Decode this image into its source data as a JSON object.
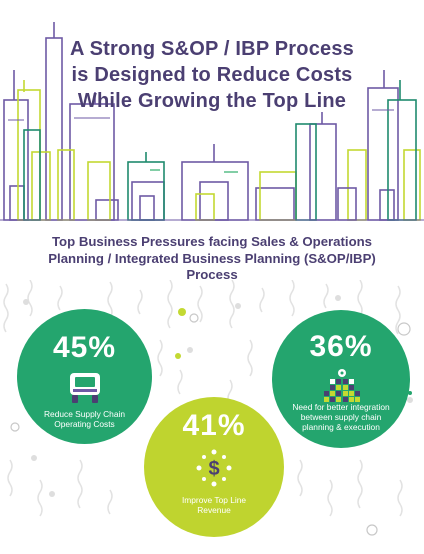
{
  "title": {
    "line1": "A Strong S&OP / IBP Process",
    "line2": "is Designed to Reduce Costs",
    "line3": "While Growing the Top Line"
  },
  "subtitle": "Top Business Pressures facing Sales & Operations Planning / Integrated Business Planning (S&OP/IBP) Process",
  "stats": [
    {
      "value": "45%",
      "label": "Reduce Supply Chain Operating Costs",
      "color": "#24a56e",
      "icon": "truck-icon"
    },
    {
      "value": "36%",
      "label": "Need for better integration between supply chain planning & execution",
      "color": "#24a56e",
      "icon": "gear-blocks-icon"
    },
    {
      "value": "41%",
      "label": "Improve Top Line Revenue",
      "color": "#bfd42f",
      "icon": "dollar-icon"
    }
  ],
  "colors": {
    "title": "#4b3f72",
    "skyline_purple": "#6e5aa5",
    "skyline_lime": "#c3d932",
    "skyline_teal": "#1f8a6e",
    "skyline_green": "#2fae6b",
    "decor_gray": "#dcdcdc"
  }
}
